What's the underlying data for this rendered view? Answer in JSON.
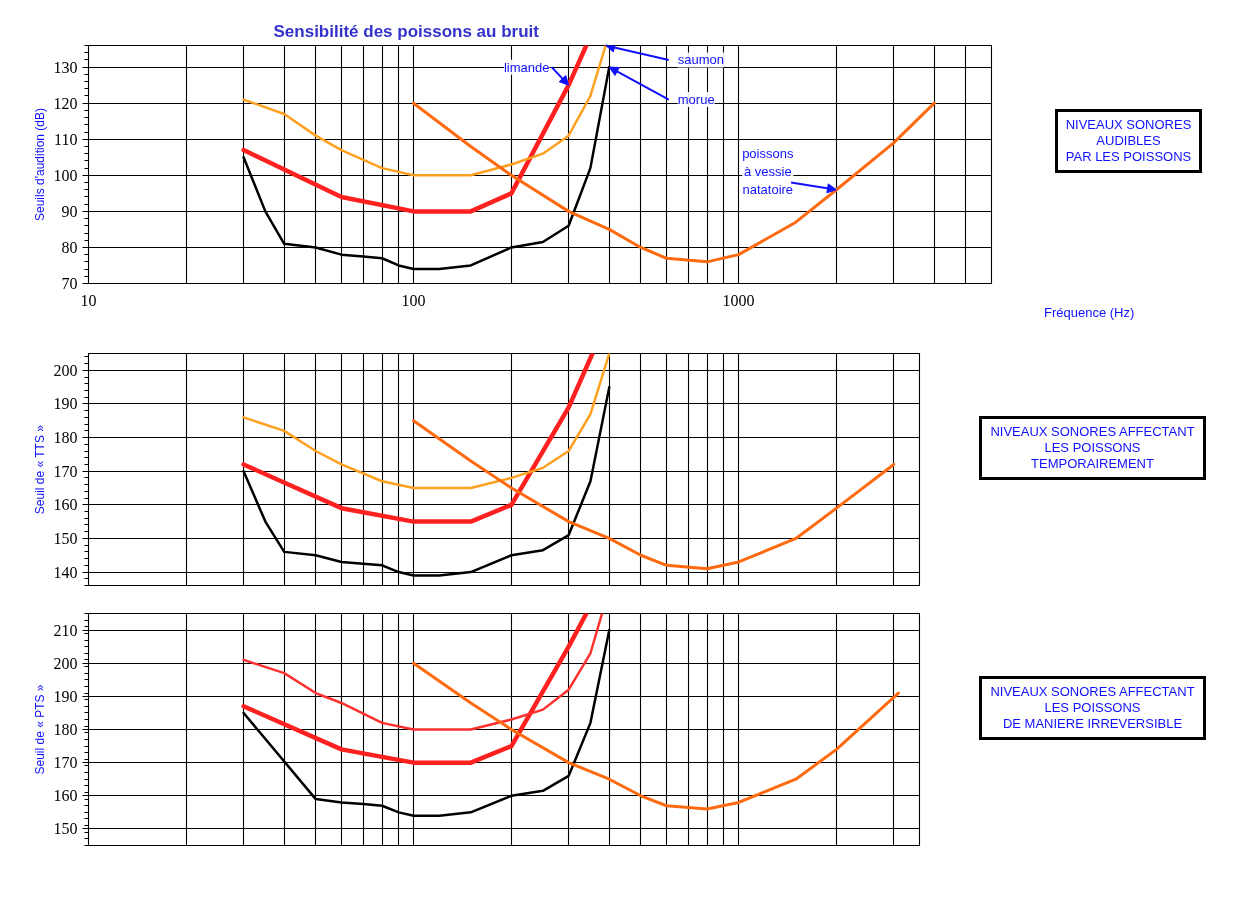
{
  "chart_data": [
    {
      "type": "line",
      "title": "Sensibilité des poissons au bruit",
      "xlabel": "Fréquence (Hz)",
      "ylabel": "Seuils d'audition (dB)",
      "log": "x",
      "grid": true,
      "marker": "none",
      "line_style": "solid",
      "xlim": [
        10,
        6000
      ],
      "ylim": [
        70,
        136
      ],
      "xticks": [
        10,
        {
          "value": 20,
          "label": null
        },
        {
          "value": 30,
          "label": null
        },
        {
          "value": 40,
          "label": null
        },
        {
          "value": 50,
          "label": null
        },
        {
          "value": 60,
          "label": null
        },
        {
          "value": 70,
          "label": null
        },
        {
          "value": 80,
          "label": null
        },
        {
          "value": 90,
          "label": null
        },
        100,
        {
          "value": 200,
          "label": null
        },
        {
          "value": 300,
          "label": null
        },
        {
          "value": 400,
          "label": null
        },
        {
          "value": 500,
          "label": null
        },
        {
          "value": 600,
          "label": null
        },
        {
          "value": 700,
          "label": null
        },
        {
          "value": 800,
          "label": null
        },
        {
          "value": 900,
          "label": null
        },
        1000,
        {
          "value": 2000,
          "label": null
        },
        {
          "value": 3000,
          "label": null
        },
        {
          "value": 4000,
          "label": null
        },
        {
          "value": 5000,
          "label": null
        }
      ],
      "yticks": [
        70,
        80,
        90,
        100,
        110,
        120,
        130
      ],
      "annotations": [
        "NIVEAUX SONORES\nAUDIBLES\nPAR LES POISSONS"
      ],
      "series": [
        {
          "name": "morue",
          "color": "#000000",
          "x": [
            30,
            35,
            40,
            50,
            60,
            70,
            80,
            90,
            100,
            120,
            150,
            200,
            250,
            300,
            350,
            400
          ],
          "values": [
            105,
            90,
            81,
            80,
            78,
            77.5,
            77,
            75,
            74,
            74,
            75,
            80,
            81.5,
            86,
            102,
            130
          ]
        },
        {
          "name": "limande",
          "color": "#ff2020",
          "x": [
            30,
            60,
            100,
            150,
            200,
            300,
            340
          ],
          "values": [
            107,
            94,
            90,
            90,
            95,
            125,
            136
          ]
        },
        {
          "name": "saumon",
          "color": "#ffa020",
          "x": [
            30,
            40,
            50,
            60,
            80,
            100,
            150,
            200,
            250,
            300,
            350,
            390
          ],
          "values": [
            121,
            117,
            111,
            107,
            102,
            100,
            100,
            103,
            106,
            111,
            122,
            136
          ]
        },
        {
          "name": "poissons\nà vessie\nnatatoire",
          "color": "#ff6a10",
          "x": [
            100,
            150,
            200,
            300,
            400,
            500,
            600,
            800,
            1000,
            1500,
            2000,
            3000,
            4000
          ],
          "values": [
            120,
            108,
            100,
            90,
            85,
            80,
            77,
            76,
            78,
            87,
            96,
            109,
            120
          ]
        }
      ]
    },
    {
      "type": "line",
      "ylabel": "Seuil de « TTS »",
      "log": "x",
      "grid": true,
      "marker": "none",
      "line_style": "solid",
      "tick_labels": "y",
      "xlim": [
        10,
        3600
      ],
      "ylim": [
        136,
        205
      ],
      "xticks": [
        10,
        {
          "value": 20,
          "label": null
        },
        {
          "value": 30,
          "label": null
        },
        {
          "value": 40,
          "label": null
        },
        {
          "value": 50,
          "label": null
        },
        {
          "value": 60,
          "label": null
        },
        {
          "value": 70,
          "label": null
        },
        {
          "value": 80,
          "label": null
        },
        {
          "value": 90,
          "label": null
        },
        100,
        {
          "value": 200,
          "label": null
        },
        {
          "value": 300,
          "label": null
        },
        {
          "value": 400,
          "label": null
        },
        {
          "value": 500,
          "label": null
        },
        {
          "value": 600,
          "label": null
        },
        {
          "value": 700,
          "label": null
        },
        {
          "value": 800,
          "label": null
        },
        {
          "value": 900,
          "label": null
        },
        1000,
        {
          "value": 2000,
          "label": null
        },
        {
          "value": 3000,
          "label": null
        }
      ],
      "yticks": [
        140,
        150,
        160,
        170,
        180,
        190,
        200
      ],
      "annotations": [
        "NIVEAUX SONORES AFFECTANT\nLES POISSONS\nTEMPORAIREMENT"
      ],
      "series": [
        {
          "color": "#000000",
          "x": [
            30,
            35,
            40,
            50,
            60,
            70,
            80,
            90,
            100,
            120,
            150,
            200,
            250,
            300,
            350,
            400
          ],
          "values": [
            170,
            155,
            146,
            145,
            143,
            142.5,
            142,
            140,
            139,
            139,
            140,
            145,
            146.5,
            151,
            167,
            195
          ]
        },
        {
          "color": "#ff2020",
          "x": [
            30,
            60,
            100,
            150,
            200,
            300,
            355
          ],
          "values": [
            172,
            159,
            155,
            155,
            160,
            189,
            205
          ]
        },
        {
          "color": "#ffa020",
          "x": [
            30,
            40,
            50,
            60,
            80,
            100,
            150,
            200,
            250,
            300,
            350,
            400
          ],
          "values": [
            186,
            182,
            176,
            172,
            167,
            165,
            165,
            168,
            171,
            176,
            187,
            205
          ]
        },
        {
          "color": "#ff6a10",
          "x": [
            100,
            150,
            200,
            300,
            400,
            500,
            600,
            800,
            1000,
            1500,
            2000,
            3000
          ],
          "values": [
            185,
            173,
            165,
            155,
            150,
            145,
            142,
            141,
            143,
            150,
            159,
            172
          ]
        }
      ]
    },
    {
      "type": "line",
      "ylabel": "Seuil de « PTS »",
      "log": "x",
      "grid": true,
      "marker": "none",
      "line_style": "solid",
      "tick_labels": "y",
      "xlim": [
        10,
        3600
      ],
      "ylim": [
        145,
        215
      ],
      "xticks": [
        10,
        {
          "value": 20,
          "label": null
        },
        {
          "value": 30,
          "label": null
        },
        {
          "value": 40,
          "label": null
        },
        {
          "value": 50,
          "label": null
        },
        {
          "value": 60,
          "label": null
        },
        {
          "value": 70,
          "label": null
        },
        {
          "value": 80,
          "label": null
        },
        {
          "value": 90,
          "label": null
        },
        100,
        {
          "value": 200,
          "label": null
        },
        {
          "value": 300,
          "label": null
        },
        {
          "value": 400,
          "label": null
        },
        {
          "value": 500,
          "label": null
        },
        {
          "value": 600,
          "label": null
        },
        {
          "value": 700,
          "label": null
        },
        {
          "value": 800,
          "label": null
        },
        {
          "value": 900,
          "label": null
        },
        1000,
        {
          "value": 2000,
          "label": null
        },
        {
          "value": 3000,
          "label": null
        }
      ],
      "yticks": [
        150,
        160,
        170,
        180,
        190,
        200,
        210
      ],
      "annotations": [
        "NIVEAUX SONORES AFFECTANT\nLES POISSONS\nDE MANIERE IRREVERSIBLE"
      ],
      "series": [
        {
          "color": "#000000",
          "x": [
            30,
            50,
            60,
            70,
            80,
            90,
            100,
            120,
            150,
            200,
            250,
            300,
            350,
            400
          ],
          "values": [
            185,
            159,
            158,
            157.5,
            157,
            155,
            154,
            154,
            155,
            160,
            161.5,
            166,
            182,
            210
          ]
        },
        {
          "color": "#ff2020",
          "x": [
            30,
            60,
            100,
            150,
            200,
            300,
            340
          ],
          "values": [
            187,
            174,
            170,
            170,
            175,
            205,
            215
          ]
        },
        {
          "color": "#ff3030",
          "x": [
            30,
            40,
            50,
            60,
            80,
            100,
            150,
            200,
            250,
            300,
            350,
            380
          ],
          "values": [
            201,
            197,
            191,
            188,
            182,
            180,
            180,
            183,
            186,
            192,
            203,
            215
          ]
        },
        {
          "color": "#ff6a10",
          "x": [
            100,
            150,
            200,
            300,
            400,
            500,
            600,
            800,
            1000,
            1500,
            2000,
            3100
          ],
          "values": [
            200,
            188,
            180,
            170,
            165,
            160,
            157,
            156,
            158,
            165,
            174,
            191
          ]
        }
      ]
    }
  ]
}
